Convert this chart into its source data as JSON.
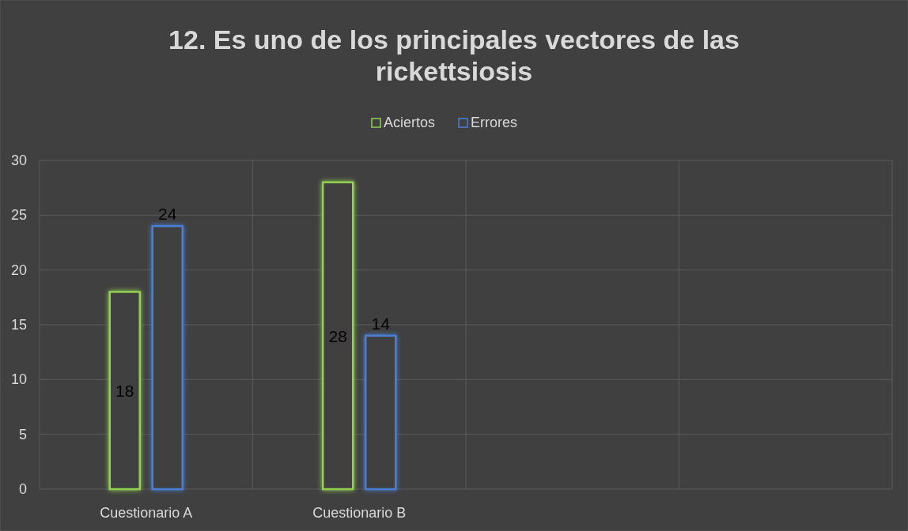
{
  "chart_data": {
    "type": "bar",
    "title": "12. Es uno de los principales vectores de las rickettsiosis",
    "categories": [
      "Cuestionario A",
      "Cuestionario B",
      null,
      null
    ],
    "series": [
      {
        "name": "Aciertos",
        "color": "#92d050",
        "values": [
          18,
          28,
          null,
          null
        ]
      },
      {
        "name": "Errores",
        "color": "#4a7fd4",
        "values": [
          24,
          14,
          null,
          null
        ]
      }
    ],
    "ylim": [
      0,
      30
    ],
    "yticks": [
      0,
      5,
      10,
      15,
      20,
      25,
      30
    ],
    "grid": true,
    "legend": "top",
    "data_labels": true
  }
}
